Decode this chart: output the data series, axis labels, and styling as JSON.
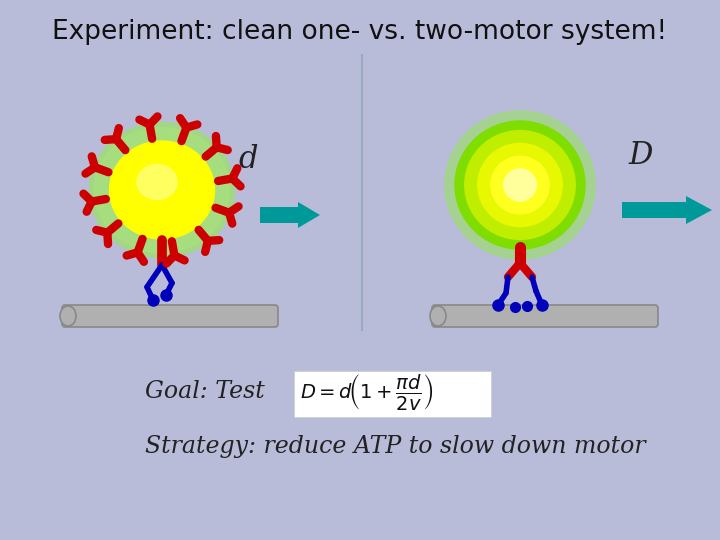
{
  "bg_color": "#b8bcd8",
  "title": "Experiment: clean one- vs. two-motor system!",
  "title_fontsize": 19,
  "left_label": "d",
  "right_label": "D",
  "arrow_color": "#009999",
  "cargo_yellow": "#ffff00",
  "cargo_green_halo": "#90ee40",
  "antibody_color": "#cc0000",
  "motor_red": "#cc0000",
  "motor_blue": "#0000bb",
  "track_color": "#b0b0b0",
  "track_edge": "#888888",
  "formula_bg": "#ffffff",
  "goal_text": "Goal: Test ",
  "strategy_text": "Strategy: reduce ATP to slow down motor",
  "text_fontsize": 17,
  "divider_color": "#99aabb"
}
